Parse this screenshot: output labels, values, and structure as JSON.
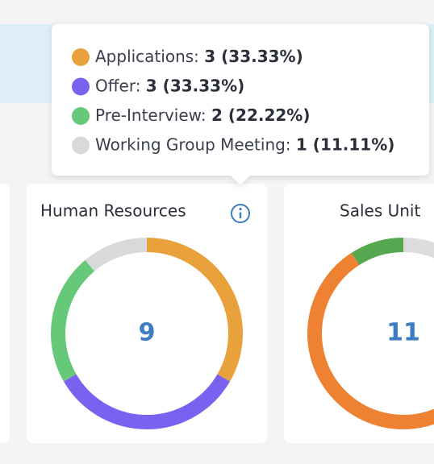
{
  "tooltip": {
    "card": 0
  },
  "cards": [
    {
      "title": "Human Resources",
      "total": 9,
      "segments": [
        {
          "name": "Applications",
          "value": 3,
          "label": "3 (33.33%)",
          "color": "#e9a23b"
        },
        {
          "name": "Offer",
          "value": 3,
          "label": "3 (33.33%)",
          "color": "#7b61f0"
        },
        {
          "name": "Pre-Interview",
          "value": 2,
          "label": "2 (22.22%)",
          "color": "#66c979"
        },
        {
          "name": "Working Group Meeting",
          "value": 1,
          "label": "1 (11.11%)",
          "color": "#d9d9d9"
        }
      ]
    },
    {
      "title": "Sales Unit",
      "total": 11,
      "segments": [
        {
          "value": 1,
          "color": "#dcdcdc"
        },
        {
          "value": 9,
          "color": "#ef8232"
        },
        {
          "value": 1,
          "color": "#55a850"
        }
      ]
    }
  ]
}
